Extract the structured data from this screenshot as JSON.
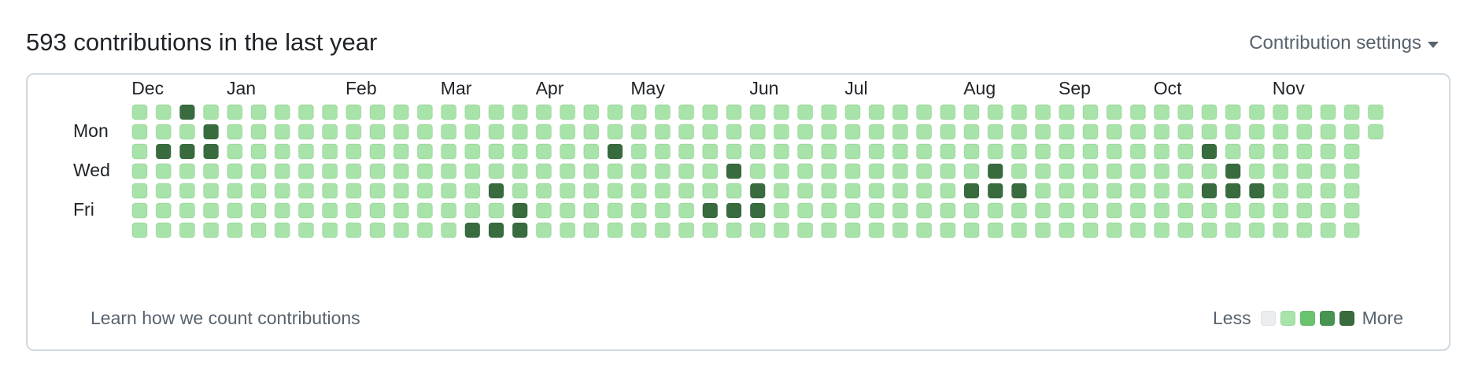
{
  "header": {
    "title": "593 contributions in the last year",
    "settings_label": "Contribution settings"
  },
  "graph": {
    "months": [
      "Dec",
      "Jan",
      "Feb",
      "Mar",
      "Apr",
      "May",
      "Jun",
      "Jul",
      "Aug",
      "Sep",
      "Oct",
      "Nov"
    ],
    "month_start_weeks": [
      1,
      5,
      10,
      14,
      18,
      22,
      27,
      31,
      36,
      40,
      44,
      49
    ],
    "weekday_labels": [
      {
        "row": 1,
        "label": "Mon"
      },
      {
        "row": 3,
        "label": "Wed"
      },
      {
        "row": 5,
        "label": "Fri"
      }
    ],
    "weeks": 53,
    "last_week_days": 2,
    "colors": [
      "#ebedf0",
      "#a8e3a9",
      "#6ac46d",
      "#489552",
      "#386b3e"
    ],
    "levels_note_default": 1,
    "dark_cells": [
      [
        0,
        2
      ],
      [
        1,
        3
      ],
      [
        2,
        1
      ],
      [
        2,
        2
      ],
      [
        2,
        3
      ],
      [
        2,
        20
      ],
      [
        2,
        45
      ],
      [
        3,
        25
      ],
      [
        3,
        36
      ],
      [
        3,
        46
      ],
      [
        4,
        15
      ],
      [
        4,
        26
      ],
      [
        4,
        35
      ],
      [
        4,
        36
      ],
      [
        4,
        37
      ],
      [
        4,
        45
      ],
      [
        4,
        46
      ],
      [
        4,
        47
      ],
      [
        5,
        16
      ],
      [
        5,
        24
      ],
      [
        5,
        25
      ],
      [
        5,
        26
      ],
      [
        6,
        14
      ],
      [
        6,
        15
      ],
      [
        6,
        16
      ]
    ]
  },
  "footer": {
    "learn_link": "Learn how we count contributions",
    "legend_less": "Less",
    "legend_more": "More"
  }
}
